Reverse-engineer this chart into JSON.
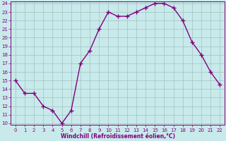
{
  "x": [
    0,
    1,
    2,
    3,
    4,
    5,
    6,
    7,
    8,
    9,
    10,
    11,
    12,
    13,
    14,
    15,
    16,
    17,
    18,
    19,
    20,
    21,
    22
  ],
  "y": [
    15,
    13.5,
    13.5,
    12,
    11.5,
    10,
    11.5,
    17,
    18.5,
    21,
    23,
    22.5,
    22.5,
    23,
    23.5,
    24,
    24,
    23.5,
    22,
    19.5,
    18,
    16,
    14.5
  ],
  "line_color": "#800080",
  "marker": "+",
  "marker_size": 4,
  "marker_lw": 1.0,
  "line_width": 1.0,
  "bg_color": "#c8eaea",
  "grid_color": "#a8c8c8",
  "xlabel": "Windchill (Refroidissement éolien,°C)",
  "xlabel_color": "#800080",
  "tick_color": "#800080",
  "spine_color": "#800080",
  "ylim": [
    10,
    24
  ],
  "xlim": [
    -0.5,
    22.5
  ],
  "yticks": [
    10,
    11,
    12,
    13,
    14,
    15,
    16,
    17,
    18,
    19,
    20,
    21,
    22,
    23,
    24
  ],
  "xticks": [
    0,
    1,
    2,
    3,
    4,
    5,
    6,
    7,
    8,
    9,
    10,
    11,
    12,
    13,
    14,
    15,
    16,
    17,
    18,
    19,
    20,
    21,
    22
  ],
  "tick_fontsize": 5.0,
  "xlabel_fontsize": 5.5,
  "xlabel_fontweight": "bold"
}
